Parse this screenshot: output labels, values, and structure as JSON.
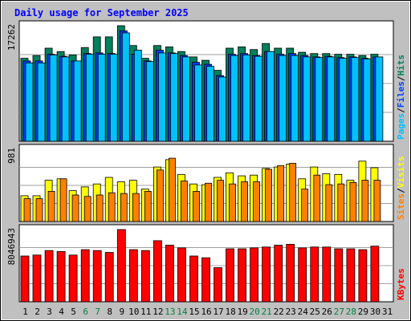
{
  "title": "Daily usage for September 2025",
  "colors": {
    "background": "#c0c0c0",
    "plot_bg": "#ffffff",
    "title": "#0000ff",
    "hits": "#00805c",
    "files": "#0040ff",
    "pages": "#00c0ff",
    "visits": "#ffff00",
    "sites": "#ff8000",
    "kbytes": "#ff0000",
    "weekend_day": "#008040",
    "weekday": "#000000"
  },
  "chart_data": [
    {
      "type": "bar",
      "panel": "hits-files-pages",
      "categories": [
        "1",
        "2",
        "3",
        "4",
        "5",
        "6",
        "7",
        "8",
        "9",
        "10",
        "11",
        "12",
        "13",
        "14",
        "15",
        "16",
        "17",
        "18",
        "19",
        "20",
        "21",
        "22",
        "23",
        "24",
        "25",
        "26",
        "27",
        "28",
        "29",
        "30",
        "31"
      ],
      "y_max_label": "17262",
      "ylim": [
        0,
        17262
      ],
      "side_labels": [
        {
          "text": "Hits",
          "series": "hits"
        },
        {
          "text": "/",
          "series": "sep"
        },
        {
          "text": "Files",
          "series": "files"
        },
        {
          "text": "/",
          "series": "sep"
        },
        {
          "text": "Pages",
          "series": "pages"
        }
      ],
      "series": [
        {
          "key": "hits",
          "values": [
            12400,
            12800,
            13900,
            13400,
            12900,
            14000,
            15600,
            15600,
            17262,
            14300,
            12400,
            14300,
            14100,
            13400,
            12600,
            12100,
            10600,
            13900,
            14100,
            13700,
            14600,
            13900,
            13900,
            13300,
            13100,
            13100,
            13000,
            13000,
            12800,
            13000,
            null
          ]
        },
        {
          "key": "files",
          "values": [
            12000,
            12000,
            13000,
            12700,
            12000,
            13100,
            13200,
            13100,
            16500,
            13000,
            12000,
            13600,
            13200,
            12800,
            11800,
            11500,
            9800,
            13000,
            13100,
            12800,
            13400,
            13000,
            13100,
            12800,
            12600,
            12700,
            12500,
            12600,
            12400,
            12600,
            null
          ]
        },
        {
          "key": "pages",
          "values": [
            11700,
            11700,
            12900,
            12600,
            12000,
            13000,
            13000,
            13000,
            16200,
            13600,
            11900,
            13200,
            13100,
            12600,
            11400,
            11200,
            9600,
            12800,
            12900,
            12700,
            13400,
            12800,
            12800,
            12600,
            12500,
            12600,
            12400,
            12500,
            12300,
            12600,
            null
          ]
        }
      ]
    },
    {
      "type": "bar",
      "panel": "visits-sites",
      "categories": [
        "1",
        "2",
        "3",
        "4",
        "5",
        "6",
        "7",
        "8",
        "9",
        "10",
        "11",
        "12",
        "13",
        "14",
        "15",
        "16",
        "17",
        "18",
        "19",
        "20",
        "21",
        "22",
        "23",
        "24",
        "25",
        "26",
        "27",
        "28",
        "29",
        "30",
        "31"
      ],
      "y_max_label": "981",
      "ylim": [
        0,
        981
      ],
      "side_labels": [
        {
          "text": "Visits",
          "series": "visits"
        },
        {
          "text": "/",
          "series": "sep"
        },
        {
          "text": "Sites",
          "series": "sites"
        }
      ],
      "series": [
        {
          "key": "visits",
          "values": [
            350,
            350,
            560,
            580,
            420,
            470,
            510,
            600,
            540,
            560,
            440,
            740,
            840,
            640,
            510,
            500,
            600,
            660,
            620,
            630,
            720,
            740,
            780,
            580,
            740,
            650,
            640,
            560,
            820,
            730,
            null
          ]
        },
        {
          "key": "sites",
          "values": [
            310,
            310,
            410,
            580,
            360,
            340,
            360,
            390,
            380,
            380,
            410,
            700,
            860,
            550,
            410,
            520,
            560,
            510,
            540,
            540,
            710,
            760,
            790,
            440,
            630,
            500,
            510,
            530,
            560,
            560,
            null
          ]
        }
      ]
    },
    {
      "type": "bar",
      "panel": "kbytes",
      "categories": [
        "1",
        "2",
        "3",
        "4",
        "5",
        "6",
        "7",
        "8",
        "9",
        "10",
        "11",
        "12",
        "13",
        "14",
        "15",
        "16",
        "17",
        "18",
        "19",
        "20",
        "21",
        "22",
        "23",
        "24",
        "25",
        "26",
        "27",
        "28",
        "29",
        "30",
        "31"
      ],
      "y_max_label": "8046943",
      "ylim": [
        0,
        8046943
      ],
      "side_labels": [
        {
          "text": "KBytes",
          "series": "kbytes"
        }
      ],
      "series": [
        {
          "key": "kbytes",
          "values": [
            5100000,
            5200000,
            5700000,
            5600000,
            5200000,
            5800000,
            5700000,
            5500000,
            8046943,
            5800000,
            5700000,
            6800000,
            6300000,
            6000000,
            5100000,
            4900000,
            3800000,
            5900000,
            5900000,
            6000000,
            6100000,
            6300000,
            6400000,
            6000000,
            6100000,
            6100000,
            5900000,
            5900000,
            5800000,
            6200000,
            null
          ]
        }
      ]
    }
  ]
}
